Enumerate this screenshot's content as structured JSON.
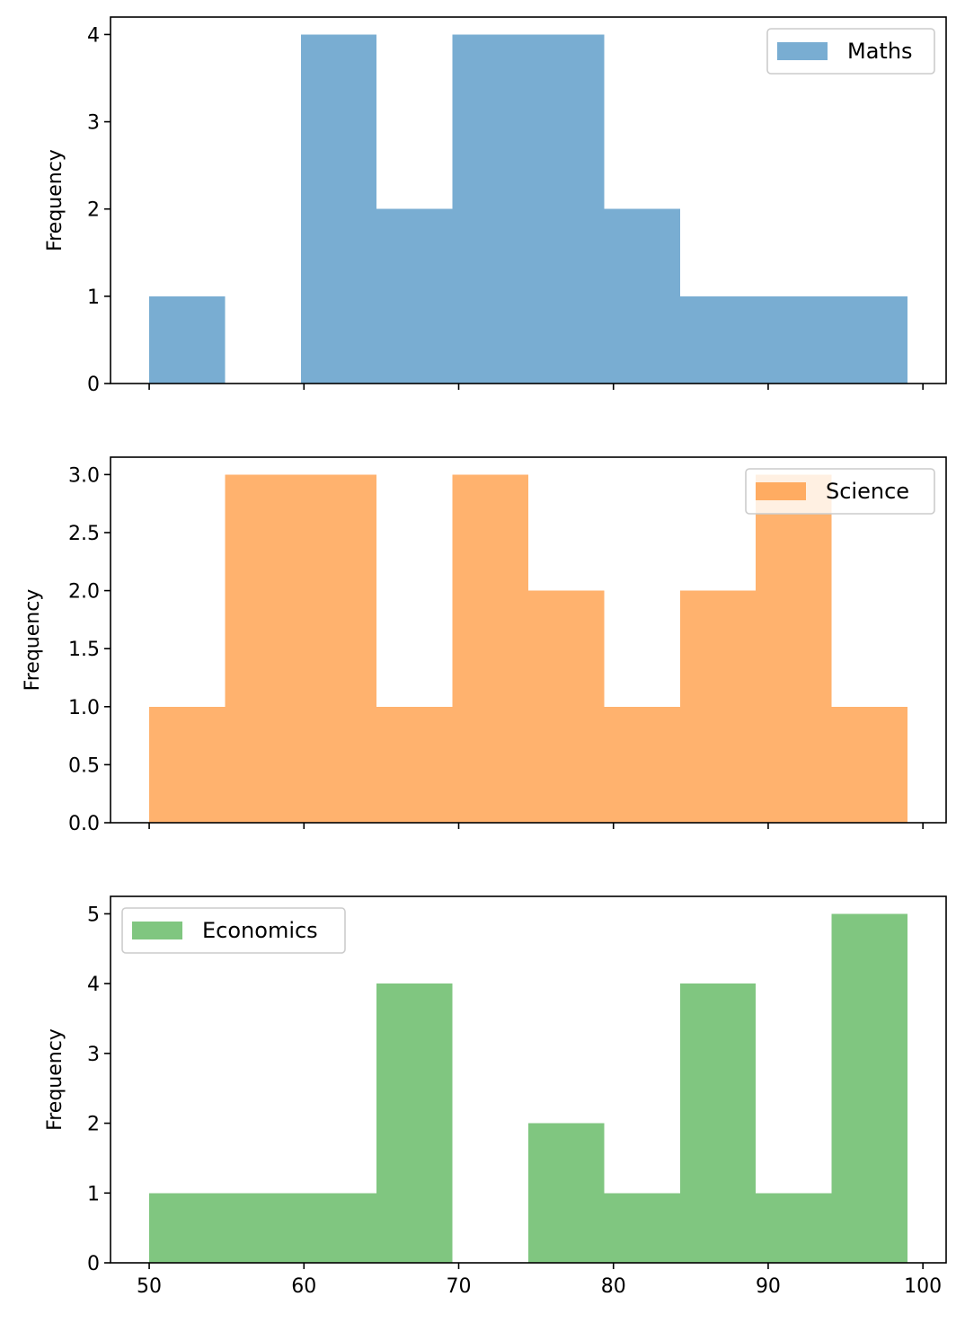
{
  "chart_data": [
    {
      "type": "bar",
      "series": [
        {
          "name": "Maths",
          "color": "#1f77b4",
          "bins": [
            {
              "x0": 50.0,
              "x1": 54.9,
              "count": 1
            },
            {
              "x0": 54.9,
              "x1": 59.8,
              "count": 0
            },
            {
              "x0": 59.8,
              "x1": 64.7,
              "count": 4
            },
            {
              "x0": 64.7,
              "x1": 69.6,
              "count": 2
            },
            {
              "x0": 69.6,
              "x1": 74.5,
              "count": 4
            },
            {
              "x0": 74.5,
              "x1": 79.4,
              "count": 4
            },
            {
              "x0": 79.4,
              "x1": 84.3,
              "count": 2
            },
            {
              "x0": 84.3,
              "x1": 89.2,
              "count": 1
            },
            {
              "x0": 89.2,
              "x1": 94.1,
              "count": 1
            },
            {
              "x0": 94.1,
              "x1": 99.0,
              "count": 1
            }
          ]
        }
      ],
      "ylabel": "Frequency",
      "xlim": [
        47.5,
        101.5
      ],
      "ylim": [
        0,
        4.2
      ],
      "yticks": [
        "0",
        "1",
        "2",
        "3",
        "4"
      ],
      "xticks": [
        "50",
        "60",
        "70",
        "80",
        "90",
        "100"
      ],
      "show_x_tick_labels": false,
      "legend": "upper right",
      "alpha": 0.6,
      "grid": false
    },
    {
      "type": "bar",
      "series": [
        {
          "name": "Science",
          "color": "#ff7f0e",
          "bins": [
            {
              "x0": 50.0,
              "x1": 54.9,
              "count": 1
            },
            {
              "x0": 54.9,
              "x1": 59.8,
              "count": 3
            },
            {
              "x0": 59.8,
              "x1": 64.7,
              "count": 3
            },
            {
              "x0": 64.7,
              "x1": 69.6,
              "count": 1
            },
            {
              "x0": 69.6,
              "x1": 74.5,
              "count": 3
            },
            {
              "x0": 74.5,
              "x1": 79.4,
              "count": 2
            },
            {
              "x0": 79.4,
              "x1": 84.3,
              "count": 1
            },
            {
              "x0": 84.3,
              "x1": 89.2,
              "count": 2
            },
            {
              "x0": 89.2,
              "x1": 94.1,
              "count": 3
            },
            {
              "x0": 94.1,
              "x1": 99.0,
              "count": 1
            }
          ]
        }
      ],
      "ylabel": "Frequency",
      "xlim": [
        47.5,
        101.5
      ],
      "ylim": [
        0,
        3.15
      ],
      "yticks": [
        "0.0",
        "0.5",
        "1.0",
        "1.5",
        "2.0",
        "2.5",
        "3.0"
      ],
      "xticks": [
        "50",
        "60",
        "70",
        "80",
        "90",
        "100"
      ],
      "show_x_tick_labels": false,
      "legend": "upper right",
      "alpha": 0.6,
      "grid": false
    },
    {
      "type": "bar",
      "series": [
        {
          "name": "Economics",
          "color": "#2ca02c",
          "bins": [
            {
              "x0": 50.0,
              "x1": 54.9,
              "count": 1
            },
            {
              "x0": 54.9,
              "x1": 59.8,
              "count": 1
            },
            {
              "x0": 59.8,
              "x1": 64.7,
              "count": 1
            },
            {
              "x0": 64.7,
              "x1": 69.6,
              "count": 4
            },
            {
              "x0": 69.6,
              "x1": 74.5,
              "count": 0
            },
            {
              "x0": 74.5,
              "x1": 79.4,
              "count": 2
            },
            {
              "x0": 79.4,
              "x1": 84.3,
              "count": 1
            },
            {
              "x0": 84.3,
              "x1": 89.2,
              "count": 4
            },
            {
              "x0": 89.2,
              "x1": 94.1,
              "count": 1
            },
            {
              "x0": 94.1,
              "x1": 99.0,
              "count": 5
            }
          ]
        }
      ],
      "ylabel": "Frequency",
      "xlim": [
        47.5,
        101.5
      ],
      "ylim": [
        0,
        5.25
      ],
      "yticks": [
        "0",
        "1",
        "2",
        "3",
        "4",
        "5"
      ],
      "xticks": [
        "50",
        "60",
        "70",
        "80",
        "90",
        "100"
      ],
      "show_x_tick_labels": true,
      "legend": "upper left",
      "alpha": 0.6,
      "grid": false
    }
  ]
}
